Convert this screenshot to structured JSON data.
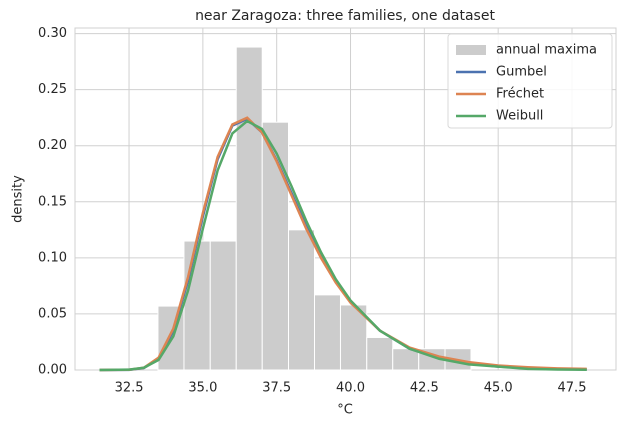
{
  "chart_data": {
    "type": "histogram",
    "title": "near Zaragoza: three families, one dataset",
    "xlabel": "°C",
    "ylabel": "density",
    "histogram": {
      "name": "annual maxima",
      "color": "#cccccc",
      "bins": [
        33.48,
        34.36,
        35.25,
        36.13,
        37.01,
        37.9,
        38.78,
        39.66,
        40.55,
        41.43,
        42.31,
        43.2,
        44.08
      ],
      "values": [
        0.057,
        0.115,
        0.115,
        0.288,
        0.221,
        0.125,
        0.067,
        0.058,
        0.029,
        0.019,
        0.019,
        0.019
      ]
    },
    "x": [
      31.5,
      32.5,
      33,
      33.5,
      34,
      34.5,
      35,
      35.5,
      36,
      36.5,
      37,
      37.5,
      38,
      38.5,
      39,
      39.5,
      40,
      41,
      42,
      43,
      44,
      45,
      46,
      47,
      48
    ],
    "series": [
      {
        "name": "Gumbel",
        "color": "#4c72b0",
        "values": [
          0,
          0.0001,
          0.0017,
          0.01,
          0.035,
          0.08,
          0.137,
          0.188,
          0.218,
          0.224,
          0.212,
          0.187,
          0.158,
          0.128,
          0.102,
          0.079,
          0.061,
          0.035,
          0.019,
          0.011,
          0.006,
          0.003,
          0.002,
          0.001,
          0.0005
        ]
      },
      {
        "name": "Fréchet",
        "color": "#dd8452",
        "values": [
          0,
          0.0002,
          0.002,
          0.011,
          0.037,
          0.083,
          0.14,
          0.19,
          0.219,
          0.225,
          0.212,
          0.186,
          0.156,
          0.126,
          0.1,
          0.078,
          0.06,
          0.035,
          0.02,
          0.012,
          0.007,
          0.004,
          0.0025,
          0.0015,
          0.001
        ]
      },
      {
        "name": "Weibull",
        "color": "#55a868",
        "values": [
          0,
          0.0003,
          0.002,
          0.009,
          0.03,
          0.071,
          0.126,
          0.178,
          0.211,
          0.222,
          0.215,
          0.193,
          0.164,
          0.133,
          0.105,
          0.081,
          0.062,
          0.035,
          0.019,
          0.01,
          0.005,
          0.003,
          0.001,
          0.0005,
          0.0002
        ]
      }
    ],
    "xlim": [
      30.67,
      48.99
    ],
    "ylim": [
      0,
      0.305
    ],
    "xticks": [
      32.5,
      {
        "value": 35,
        "label": "35.0"
      },
      37.5,
      {
        "value": 40,
        "label": "40.0"
      },
      42.5,
      {
        "value": 45,
        "label": "45.0"
      },
      47.5
    ],
    "yticks": [
      {
        "value": 0,
        "label": "0.00"
      },
      0.05,
      {
        "value": 0.1,
        "label": "0.10"
      },
      0.15,
      {
        "value": 0.2,
        "label": "0.20"
      },
      0.25,
      {
        "value": 0.3,
        "label": "0.30"
      }
    ],
    "grid": true,
    "legend": "upper right"
  }
}
